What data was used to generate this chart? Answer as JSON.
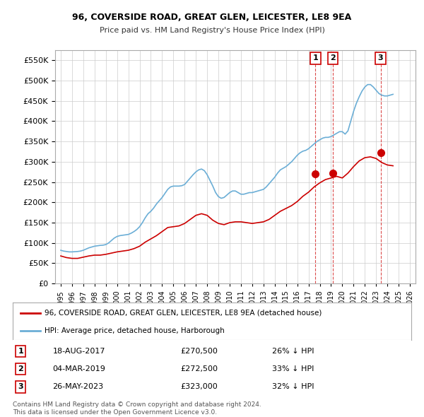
{
  "title": "96, COVERSIDE ROAD, GREAT GLEN, LEICESTER, LE8 9EA",
  "subtitle": "Price paid vs. HM Land Registry's House Price Index (HPI)",
  "ylabel_ticks": [
    "£0",
    "£50K",
    "£100K",
    "£150K",
    "£200K",
    "£250K",
    "£300K",
    "£350K",
    "£400K",
    "£450K",
    "£500K",
    "£550K"
  ],
  "ytick_values": [
    0,
    50000,
    100000,
    150000,
    200000,
    250000,
    300000,
    350000,
    400000,
    450000,
    500000,
    550000
  ],
  "ylim": [
    0,
    575000
  ],
  "xlim_start": 1994.5,
  "xlim_end": 2026.5,
  "hpi_line_color": "#6baed6",
  "property_line_color": "#cc0000",
  "hpi_data": {
    "years": [
      1995.0,
      1995.25,
      1995.5,
      1995.75,
      1996.0,
      1996.25,
      1996.5,
      1996.75,
      1997.0,
      1997.25,
      1997.5,
      1997.75,
      1998.0,
      1998.25,
      1998.5,
      1998.75,
      1999.0,
      1999.25,
      1999.5,
      1999.75,
      2000.0,
      2000.25,
      2000.5,
      2000.75,
      2001.0,
      2001.25,
      2001.5,
      2001.75,
      2002.0,
      2002.25,
      2002.5,
      2002.75,
      2003.0,
      2003.25,
      2003.5,
      2003.75,
      2004.0,
      2004.25,
      2004.5,
      2004.75,
      2005.0,
      2005.25,
      2005.5,
      2005.75,
      2006.0,
      2006.25,
      2006.5,
      2006.75,
      2007.0,
      2007.25,
      2007.5,
      2007.75,
      2008.0,
      2008.25,
      2008.5,
      2008.75,
      2009.0,
      2009.25,
      2009.5,
      2009.75,
      2010.0,
      2010.25,
      2010.5,
      2010.75,
      2011.0,
      2011.25,
      2011.5,
      2011.75,
      2012.0,
      2012.25,
      2012.5,
      2012.75,
      2013.0,
      2013.25,
      2013.5,
      2013.75,
      2014.0,
      2014.25,
      2014.5,
      2014.75,
      2015.0,
      2015.25,
      2015.5,
      2015.75,
      2016.0,
      2016.25,
      2016.5,
      2016.75,
      2017.0,
      2017.25,
      2017.5,
      2017.75,
      2018.0,
      2018.25,
      2018.5,
      2018.75,
      2019.0,
      2019.25,
      2019.5,
      2019.75,
      2020.0,
      2020.25,
      2020.5,
      2020.75,
      2021.0,
      2021.25,
      2021.5,
      2021.75,
      2022.0,
      2022.25,
      2022.5,
      2022.75,
      2023.0,
      2023.25,
      2023.5,
      2023.75,
      2024.0,
      2024.25,
      2024.5
    ],
    "values": [
      82000,
      80000,
      79000,
      78000,
      78000,
      78500,
      79000,
      80000,
      82000,
      85000,
      88000,
      90000,
      92000,
      93000,
      94000,
      94500,
      96000,
      100000,
      106000,
      112000,
      116000,
      118000,
      119000,
      120000,
      121000,
      124000,
      128000,
      133000,
      140000,
      150000,
      162000,
      172000,
      178000,
      186000,
      196000,
      204000,
      212000,
      222000,
      232000,
      238000,
      240000,
      240000,
      240000,
      241000,
      244000,
      252000,
      260000,
      268000,
      275000,
      280000,
      282000,
      278000,
      268000,
      254000,
      240000,
      224000,
      214000,
      210000,
      212000,
      218000,
      224000,
      228000,
      228000,
      224000,
      220000,
      220000,
      222000,
      224000,
      224000,
      226000,
      228000,
      230000,
      232000,
      238000,
      246000,
      254000,
      262000,
      272000,
      280000,
      284000,
      288000,
      294000,
      300000,
      308000,
      316000,
      322000,
      326000,
      328000,
      332000,
      338000,
      344000,
      350000,
      354000,
      358000,
      360000,
      360000,
      362000,
      366000,
      370000,
      374000,
      374000,
      368000,
      376000,
      400000,
      424000,
      444000,
      460000,
      474000,
      484000,
      490000,
      490000,
      484000,
      476000,
      468000,
      464000,
      462000,
      462000,
      464000,
      466000
    ]
  },
  "property_data": {
    "years": [
      1995.0,
      1995.5,
      1996.0,
      1996.5,
      1997.0,
      1997.5,
      1998.0,
      1998.5,
      1999.0,
      1999.5,
      2000.0,
      2000.5,
      2001.0,
      2001.5,
      2002.0,
      2002.5,
      2003.0,
      2003.5,
      2004.0,
      2004.5,
      2005.0,
      2005.5,
      2006.0,
      2006.5,
      2007.0,
      2007.5,
      2008.0,
      2008.5,
      2009.0,
      2009.5,
      2010.0,
      2010.5,
      2011.0,
      2011.5,
      2012.0,
      2012.5,
      2013.0,
      2013.5,
      2014.0,
      2014.5,
      2015.0,
      2015.5,
      2016.0,
      2016.5,
      2017.0,
      2017.5,
      2018.0,
      2018.5,
      2019.0,
      2019.5,
      2020.0,
      2020.5,
      2021.0,
      2021.5,
      2022.0,
      2022.5,
      2023.0,
      2023.5,
      2024.0,
      2024.5
    ],
    "values": [
      68000,
      64000,
      62000,
      62000,
      65000,
      68000,
      70000,
      70000,
      72000,
      75000,
      78000,
      80000,
      82000,
      86000,
      92000,
      102000,
      110000,
      118000,
      128000,
      138000,
      140000,
      142000,
      148000,
      158000,
      168000,
      172000,
      168000,
      156000,
      148000,
      145000,
      150000,
      152000,
      152000,
      150000,
      148000,
      150000,
      152000,
      158000,
      168000,
      178000,
      185000,
      192000,
      202000,
      215000,
      225000,
      238000,
      248000,
      256000,
      260000,
      264000,
      260000,
      272000,
      288000,
      302000,
      310000,
      312000,
      308000,
      298000,
      292000,
      290000
    ]
  },
  "transactions": [
    {
      "num": 1,
      "year": 2017.62,
      "price": 270500,
      "label": "1",
      "date": "18-AUG-2017",
      "price_str": "£270,500",
      "pct": "26% ↓ HPI"
    },
    {
      "num": 2,
      "year": 2019.17,
      "price": 272500,
      "label": "2",
      "date": "04-MAR-2019",
      "price_str": "£272,500",
      "pct": "33% ↓ HPI"
    },
    {
      "num": 3,
      "year": 2023.4,
      "price": 323000,
      "label": "3",
      "date": "26-MAY-2023",
      "price_str": "£323,000",
      "pct": "32% ↓ HPI"
    }
  ],
  "legend_property": "96, COVERSIDE ROAD, GREAT GLEN, LEICESTER, LE8 9EA (detached house)",
  "legend_hpi": "HPI: Average price, detached house, Harborough",
  "footnote1": "Contains HM Land Registry data © Crown copyright and database right 2024.",
  "footnote2": "This data is licensed under the Open Government Licence v3.0.",
  "bg_color": "#ffffff",
  "grid_color": "#cccccc",
  "transaction_color": "#cc0000"
}
